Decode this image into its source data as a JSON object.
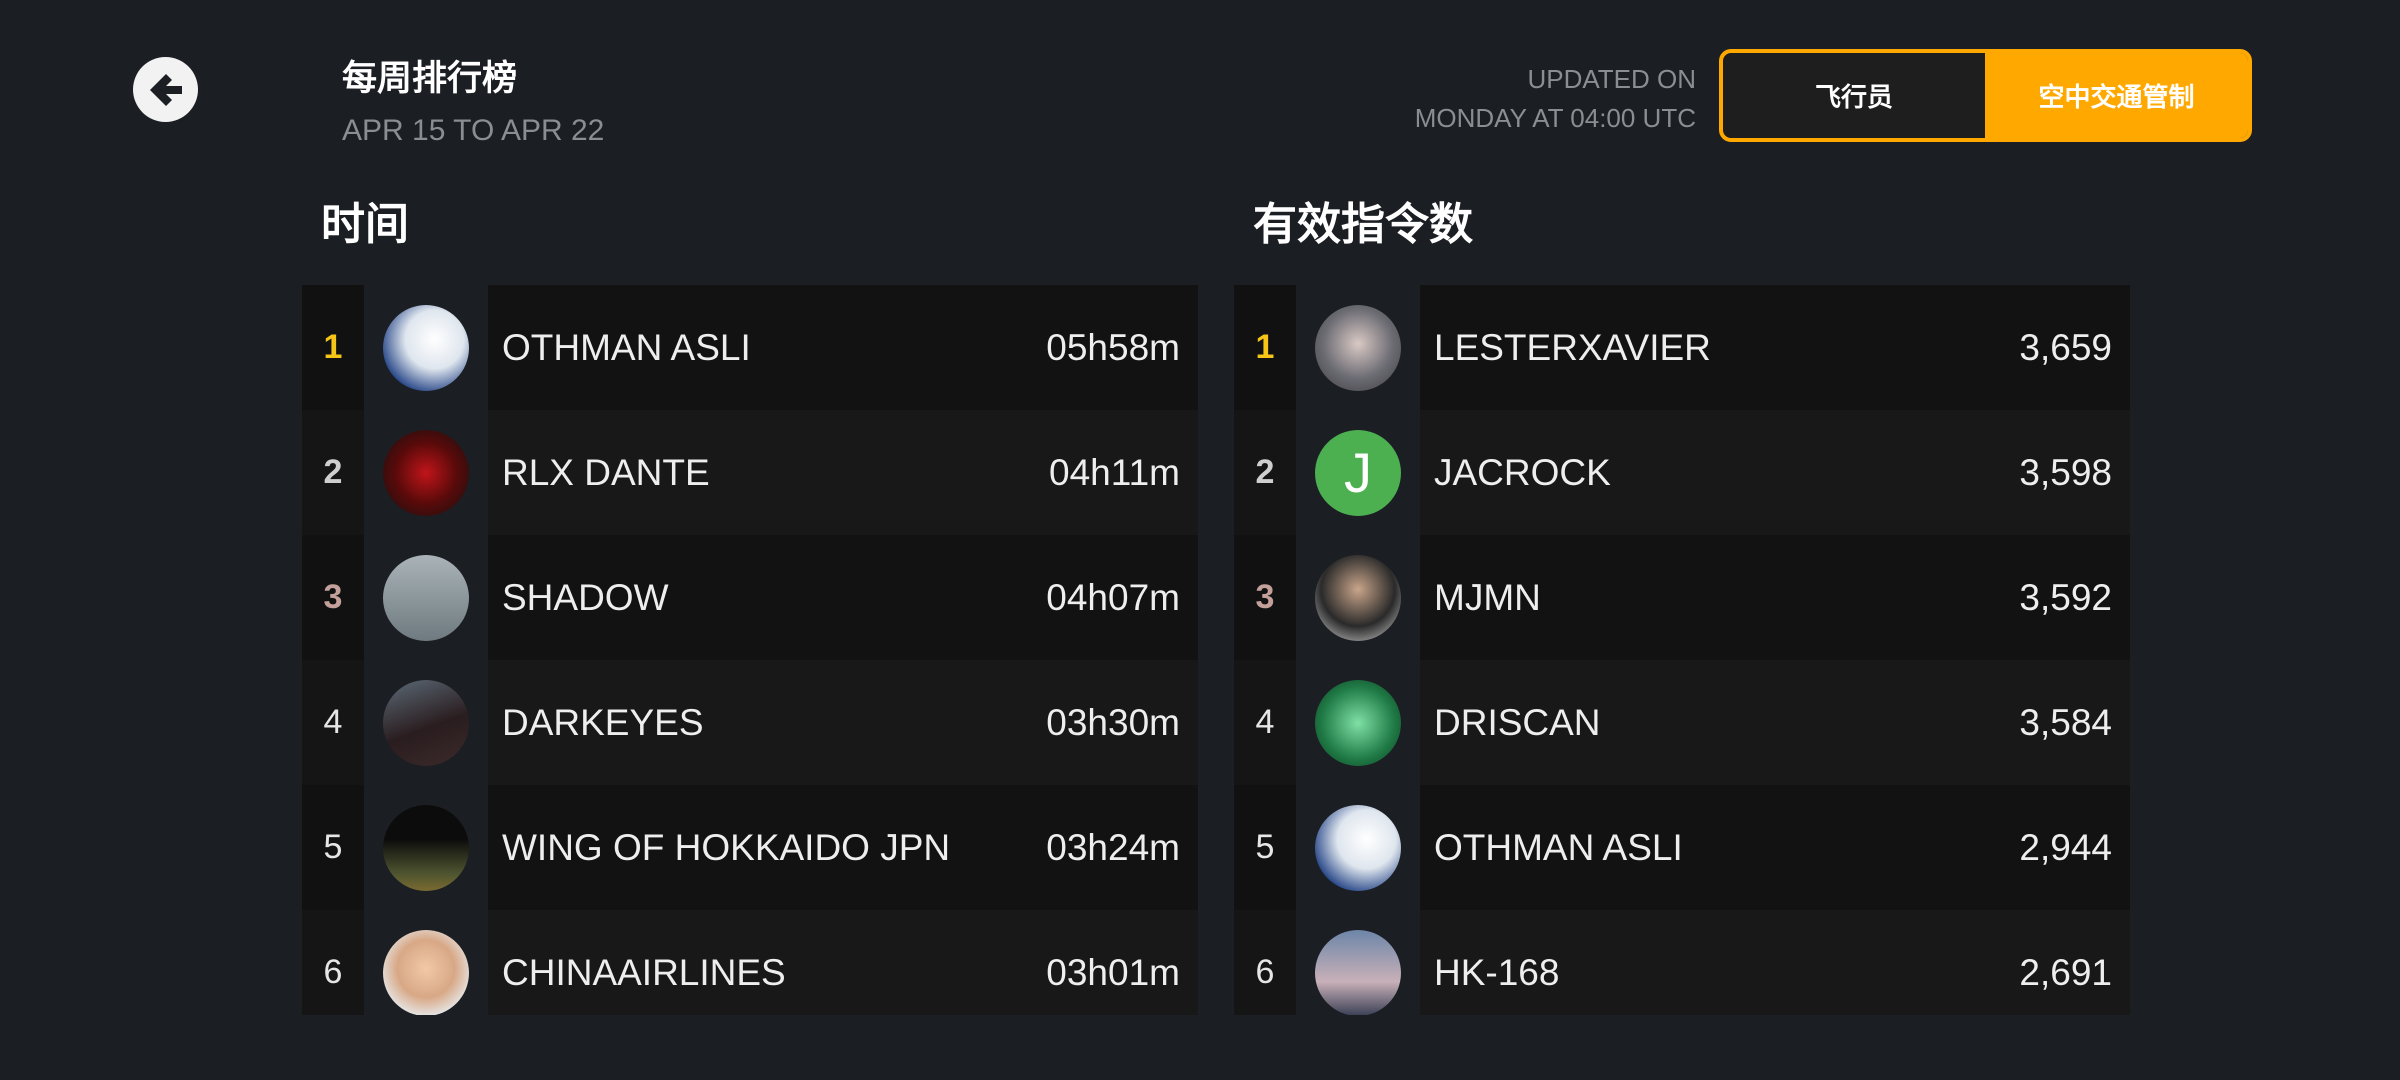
{
  "header": {
    "title": "每周排行榜",
    "subtitle": "APR 15 TO APR 22",
    "updated_line1": "UPDATED ON",
    "updated_line2": "MONDAY AT 04:00 UTC"
  },
  "toggle": {
    "options": [
      "飞行员",
      "空中交通管制"
    ],
    "selected": "空中交通管制",
    "accent": "#ffa800"
  },
  "rank_colors": {
    "1": "#f5c518",
    "2": "#cfcfcf",
    "3": "#c4a09b"
  },
  "time_board": {
    "heading": "时间",
    "rows": [
      {
        "rank": "1",
        "name": "OTHMAN ASLI",
        "value": "05h58m",
        "avatar": "airplane-nose"
      },
      {
        "rank": "2",
        "name": "RLX DANTE",
        "value": "04h11m",
        "avatar": "red-car"
      },
      {
        "rank": "3",
        "name": "SHADOW",
        "value": "04h07m",
        "avatar": "airplane-grey"
      },
      {
        "rank": "4",
        "name": "DARKEYES",
        "value": "03h30m",
        "avatar": "sky-dark"
      },
      {
        "rank": "5",
        "name": "WING OF HOKKAIDO JPN",
        "value": "03h24m",
        "avatar": "airplane-night"
      },
      {
        "rank": "6",
        "name": "CHINAAIRLINES",
        "value": "03h01m",
        "avatar": "face-photo"
      }
    ]
  },
  "commands_board": {
    "heading": "有效指令数",
    "rows": [
      {
        "rank": "1",
        "name": "LESTERXAVIER",
        "value": "3,659",
        "avatar": "anime-boy"
      },
      {
        "rank": "2",
        "name": "JACROCK",
        "value": "3,598",
        "avatar": "letter",
        "letter": "J"
      },
      {
        "rank": "3",
        "name": "MJMN",
        "value": "3,592",
        "avatar": "person-photo"
      },
      {
        "rank": "4",
        "name": "DRISCAN",
        "value": "3,584",
        "avatar": "green-logo"
      },
      {
        "rank": "5",
        "name": "OTHMAN ASLI",
        "value": "2,944",
        "avatar": "airplane-nose"
      },
      {
        "rank": "6",
        "name": "HK-168",
        "value": "2,691",
        "avatar": "clouds"
      }
    ]
  }
}
